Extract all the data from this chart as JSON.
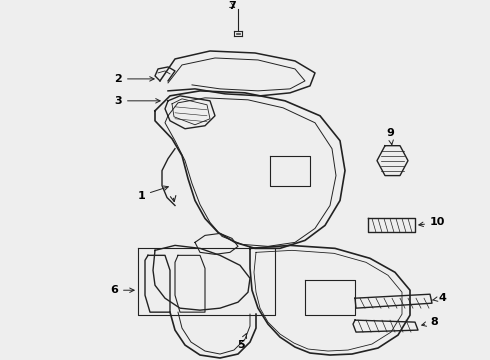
{
  "bg_color": "#eeeeee",
  "line_color": "#222222",
  "label_color": "#000000",
  "figsize": [
    4.9,
    3.6
  ],
  "dpi": 100
}
